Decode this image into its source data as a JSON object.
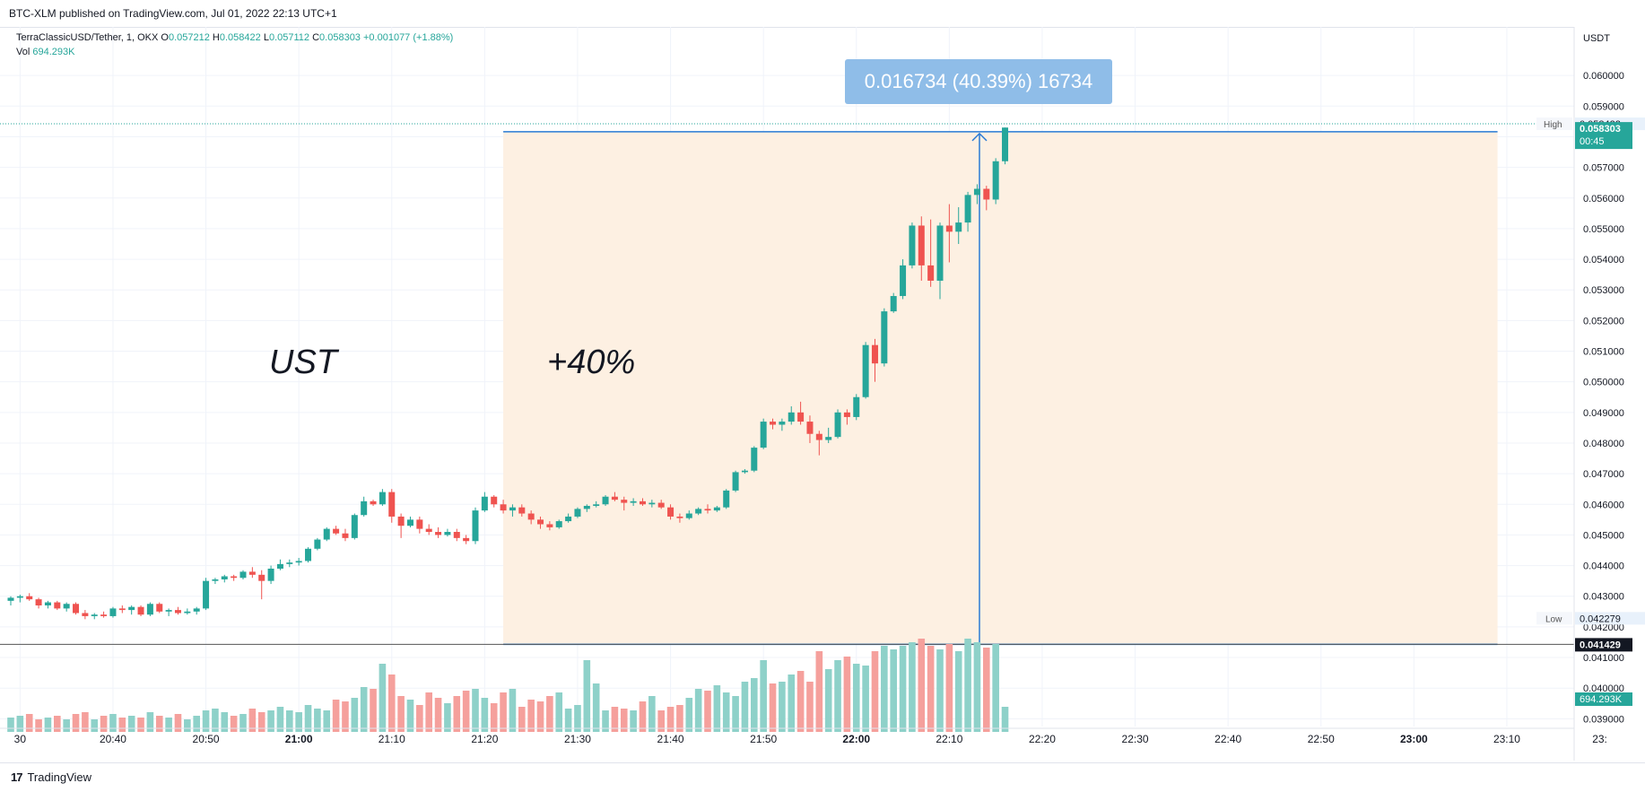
{
  "header": {
    "published_text": "BTC-XLM published on TradingView.com, Jul 01, 2022 22:13 UTC+1"
  },
  "legend": {
    "symbol": "TerraClassicUSD/Tether, 1, OKX",
    "open_label": "O",
    "open_value": "0.057212",
    "high_label": "H",
    "high_value": "0.058422",
    "low_label": "L",
    "low_value": "0.057112",
    "close_label": "C",
    "close_value": "0.058303",
    "change_value": "+0.001077 (+1.88%)",
    "vol_label": "Vol",
    "vol_value": "694.293K"
  },
  "footer": {
    "logo": "17",
    "brand": "TradingView"
  },
  "colors": {
    "up": "#26a69a",
    "down": "#ef5350",
    "up_vol": "#8ed1c9",
    "down_vol": "#f5a09c",
    "range_fill": "#fdf0e2",
    "measure_line": "#2a7bd4",
    "measure_label_bg": "#8fbde8"
  },
  "chart_data": {
    "type": "candlestick",
    "title": "TerraClassicUSD/Tether, 1, OKX",
    "currency_label": "USDT",
    "ylim": [
      0.0386,
      0.061
    ],
    "y_ticks": [
      "0.039000",
      "0.040000",
      "0.041000",
      "0.042000",
      "0.043000",
      "0.044000",
      "0.045000",
      "0.046000",
      "0.047000",
      "0.048000",
      "0.049000",
      "0.050000",
      "0.051000",
      "0.052000",
      "0.053000",
      "0.054000",
      "0.055000",
      "0.056000",
      "0.057000",
      "0.058000",
      "0.059000",
      "0.060000"
    ],
    "x_tick_labels": [
      "30",
      "20:40",
      "20:50",
      "21:00",
      "21:10",
      "21:20",
      "21:30",
      "21:40",
      "21:50",
      "22:00",
      "22:10",
      "22:20",
      "22:30",
      "22:40",
      "22:50",
      "23:00",
      "23:10",
      "23:"
    ],
    "x_tick_bold": [
      "21:00",
      "22:00",
      "23:00"
    ],
    "x_start_time": "20:29",
    "candles": [
      [
        0.04285,
        0.043,
        0.0427,
        0.04295
      ],
      [
        0.04295,
        0.04305,
        0.0428,
        0.043
      ],
      [
        0.043,
        0.0431,
        0.04285,
        0.0429
      ],
      [
        0.0429,
        0.04295,
        0.0426,
        0.0427
      ],
      [
        0.0427,
        0.04285,
        0.0426,
        0.0428
      ],
      [
        0.0428,
        0.04285,
        0.04255,
        0.0426
      ],
      [
        0.0426,
        0.0428,
        0.0425,
        0.04275
      ],
      [
        0.04275,
        0.0428,
        0.0424,
        0.04245
      ],
      [
        0.04245,
        0.04255,
        0.04225,
        0.04235
      ],
      [
        0.04235,
        0.04245,
        0.04225,
        0.0424
      ],
      [
        0.0424,
        0.0425,
        0.0423,
        0.04235
      ],
      [
        0.04235,
        0.04265,
        0.0423,
        0.0426
      ],
      [
        0.0426,
        0.0427,
        0.04245,
        0.04255
      ],
      [
        0.04255,
        0.0427,
        0.0424,
        0.04265
      ],
      [
        0.04265,
        0.0427,
        0.04235,
        0.0424
      ],
      [
        0.0424,
        0.0428,
        0.04235,
        0.04275
      ],
      [
        0.04275,
        0.0428,
        0.04245,
        0.0425
      ],
      [
        0.0425,
        0.0426,
        0.04235,
        0.04255
      ],
      [
        0.04255,
        0.04265,
        0.0424,
        0.04245
      ],
      [
        0.04245,
        0.0426,
        0.0424,
        0.0425
      ],
      [
        0.0425,
        0.04265,
        0.0424,
        0.0426
      ],
      [
        0.0426,
        0.0436,
        0.04255,
        0.0435
      ],
      [
        0.0435,
        0.0436,
        0.0434,
        0.04355
      ],
      [
        0.04355,
        0.0437,
        0.04345,
        0.04365
      ],
      [
        0.04365,
        0.0437,
        0.0435,
        0.0436
      ],
      [
        0.0436,
        0.04385,
        0.04355,
        0.0438
      ],
      [
        0.0438,
        0.04395,
        0.0436,
        0.0437
      ],
      [
        0.0437,
        0.04385,
        0.0429,
        0.0435
      ],
      [
        0.0435,
        0.044,
        0.0434,
        0.0439
      ],
      [
        0.0439,
        0.0442,
        0.04385,
        0.04405
      ],
      [
        0.04405,
        0.0442,
        0.04395,
        0.0441
      ],
      [
        0.0441,
        0.04425,
        0.044,
        0.04415
      ],
      [
        0.04415,
        0.0446,
        0.0441,
        0.04455
      ],
      [
        0.04455,
        0.0449,
        0.0445,
        0.04485
      ],
      [
        0.04485,
        0.04525,
        0.0448,
        0.0452
      ],
      [
        0.0452,
        0.0453,
        0.045,
        0.04505
      ],
      [
        0.04505,
        0.0452,
        0.0448,
        0.0449
      ],
      [
        0.0449,
        0.0457,
        0.04485,
        0.04565
      ],
      [
        0.04565,
        0.04625,
        0.0456,
        0.0461
      ],
      [
        0.0461,
        0.04615,
        0.04595,
        0.046
      ],
      [
        0.046,
        0.0465,
        0.04595,
        0.0464
      ],
      [
        0.0464,
        0.0465,
        0.0454,
        0.0456
      ],
      [
        0.0456,
        0.0457,
        0.0449,
        0.0453
      ],
      [
        0.0453,
        0.0456,
        0.04525,
        0.0455
      ],
      [
        0.0455,
        0.0456,
        0.04505,
        0.0452
      ],
      [
        0.0452,
        0.04535,
        0.045,
        0.0451
      ],
      [
        0.0451,
        0.04525,
        0.0449,
        0.045
      ],
      [
        0.045,
        0.0452,
        0.04495,
        0.0451
      ],
      [
        0.0451,
        0.0452,
        0.0448,
        0.0449
      ],
      [
        0.0449,
        0.045,
        0.0447,
        0.0448
      ],
      [
        0.0448,
        0.0459,
        0.0447,
        0.0458
      ],
      [
        0.0458,
        0.0464,
        0.04575,
        0.04625
      ],
      [
        0.04625,
        0.0463,
        0.0459,
        0.046
      ],
      [
        0.046,
        0.04615,
        0.0457,
        0.0458
      ],
      [
        0.0458,
        0.046,
        0.0456,
        0.0459
      ],
      [
        0.0459,
        0.046,
        0.0456,
        0.0457
      ],
      [
        0.0457,
        0.0458,
        0.04535,
        0.0455
      ],
      [
        0.0455,
        0.0456,
        0.0452,
        0.04535
      ],
      [
        0.04535,
        0.04545,
        0.04515,
        0.04525
      ],
      [
        0.04525,
        0.0455,
        0.0452,
        0.04545
      ],
      [
        0.04545,
        0.0457,
        0.0454,
        0.0456
      ],
      [
        0.0456,
        0.0459,
        0.04555,
        0.04585
      ],
      [
        0.04585,
        0.046,
        0.04575,
        0.04595
      ],
      [
        0.04595,
        0.0461,
        0.0459,
        0.046
      ],
      [
        0.046,
        0.0463,
        0.04595,
        0.04625
      ],
      [
        0.04625,
        0.0464,
        0.0461,
        0.04615
      ],
      [
        0.04615,
        0.04625,
        0.0458,
        0.04605
      ],
      [
        0.04605,
        0.0462,
        0.04595,
        0.0461
      ],
      [
        0.0461,
        0.0462,
        0.04595,
        0.046
      ],
      [
        0.046,
        0.04615,
        0.0459,
        0.04605
      ],
      [
        0.04605,
        0.04615,
        0.04585,
        0.0459
      ],
      [
        0.0459,
        0.046,
        0.0455,
        0.0456
      ],
      [
        0.0456,
        0.0457,
        0.0454,
        0.04555
      ],
      [
        0.04555,
        0.0458,
        0.0455,
        0.0457
      ],
      [
        0.0457,
        0.0459,
        0.04565,
        0.04585
      ],
      [
        0.04585,
        0.046,
        0.0457,
        0.0458
      ],
      [
        0.0458,
        0.04595,
        0.04575,
        0.0459
      ],
      [
        0.0459,
        0.0465,
        0.04585,
        0.04645
      ],
      [
        0.04645,
        0.0471,
        0.0464,
        0.04705
      ],
      [
        0.04705,
        0.04715,
        0.047,
        0.0471
      ],
      [
        0.0471,
        0.0479,
        0.04705,
        0.04785
      ],
      [
        0.04785,
        0.0488,
        0.0478,
        0.0487
      ],
      [
        0.0487,
        0.0488,
        0.04845,
        0.0486
      ],
      [
        0.0486,
        0.0488,
        0.0484,
        0.0487
      ],
      [
        0.0487,
        0.0492,
        0.0486,
        0.049
      ],
      [
        0.049,
        0.04935,
        0.0486,
        0.0487
      ],
      [
        0.0487,
        0.0489,
        0.048,
        0.0483
      ],
      [
        0.0483,
        0.0484,
        0.0476,
        0.0481
      ],
      [
        0.0481,
        0.0485,
        0.048,
        0.0482
      ],
      [
        0.0482,
        0.0491,
        0.04815,
        0.049
      ],
      [
        0.049,
        0.0491,
        0.0486,
        0.04885
      ],
      [
        0.04885,
        0.0496,
        0.04875,
        0.0495
      ],
      [
        0.0495,
        0.0513,
        0.04945,
        0.0512
      ],
      [
        0.0512,
        0.0514,
        0.05,
        0.0506
      ],
      [
        0.0506,
        0.0524,
        0.0505,
        0.0523
      ],
      [
        0.0523,
        0.0529,
        0.05225,
        0.0528
      ],
      [
        0.0528,
        0.054,
        0.0527,
        0.0538
      ],
      [
        0.0538,
        0.0552,
        0.0537,
        0.0551
      ],
      [
        0.0551,
        0.0554,
        0.0533,
        0.0538
      ],
      [
        0.0538,
        0.0553,
        0.0531,
        0.0533
      ],
      [
        0.0533,
        0.0552,
        0.0527,
        0.0551
      ],
      [
        0.0551,
        0.0558,
        0.0539,
        0.0549
      ],
      [
        0.0549,
        0.0557,
        0.0545,
        0.0552
      ],
      [
        0.0552,
        0.0562,
        0.0549,
        0.0561
      ],
      [
        0.0561,
        0.05645,
        0.0558,
        0.0563
      ],
      [
        0.0563,
        0.0564,
        0.0556,
        0.05595
      ],
      [
        0.05595,
        0.0573,
        0.0558,
        0.0572
      ],
      [
        0.0572,
        0.0583,
        0.0571,
        0.0583
      ]
    ],
    "volume_scale_max": 1.0,
    "volumes": [
      0.08,
      0.09,
      0.1,
      0.07,
      0.08,
      0.09,
      0.07,
      0.1,
      0.11,
      0.07,
      0.09,
      0.1,
      0.08,
      0.09,
      0.08,
      0.11,
      0.09,
      0.08,
      0.1,
      0.07,
      0.09,
      0.12,
      0.13,
      0.11,
      0.09,
      0.1,
      0.13,
      0.11,
      0.12,
      0.14,
      0.12,
      0.11,
      0.15,
      0.13,
      0.12,
      0.18,
      0.17,
      0.19,
      0.25,
      0.24,
      0.38,
      0.32,
      0.2,
      0.18,
      0.15,
      0.22,
      0.19,
      0.16,
      0.2,
      0.23,
      0.24,
      0.19,
      0.16,
      0.22,
      0.24,
      0.14,
      0.18,
      0.17,
      0.2,
      0.22,
      0.13,
      0.15,
      0.4,
      0.27,
      0.12,
      0.14,
      0.13,
      0.12,
      0.17,
      0.2,
      0.12,
      0.14,
      0.15,
      0.19,
      0.24,
      0.23,
      0.26,
      0.22,
      0.2,
      0.28,
      0.3,
      0.4,
      0.27,
      0.28,
      0.32,
      0.34,
      0.28,
      0.45,
      0.35,
      0.4,
      0.42,
      0.38,
      0.37,
      0.45,
      0.48,
      0.46,
      0.48,
      0.5,
      0.52,
      0.48,
      0.46,
      0.49,
      0.45,
      0.52,
      0.5,
      0.47,
      0.49,
      0.14
    ],
    "volume_label": "694.293K",
    "range_tool": {
      "label": "0.016734 (40.39%) 16734",
      "from_price": 0.041429,
      "to_price": 0.058163,
      "from_time": "21:22",
      "to_time": "23:09"
    },
    "annotations": [
      "UST",
      "+40%"
    ],
    "price_badges": [
      {
        "label": "High",
        "value": "0.058422"
      },
      {
        "label": "",
        "value": "0.058303",
        "sub": "00:45"
      },
      {
        "label": "Low",
        "value": "0.042279"
      },
      {
        "label": "",
        "value": "0.041429"
      }
    ],
    "horizontal_line": 0.041429
  }
}
